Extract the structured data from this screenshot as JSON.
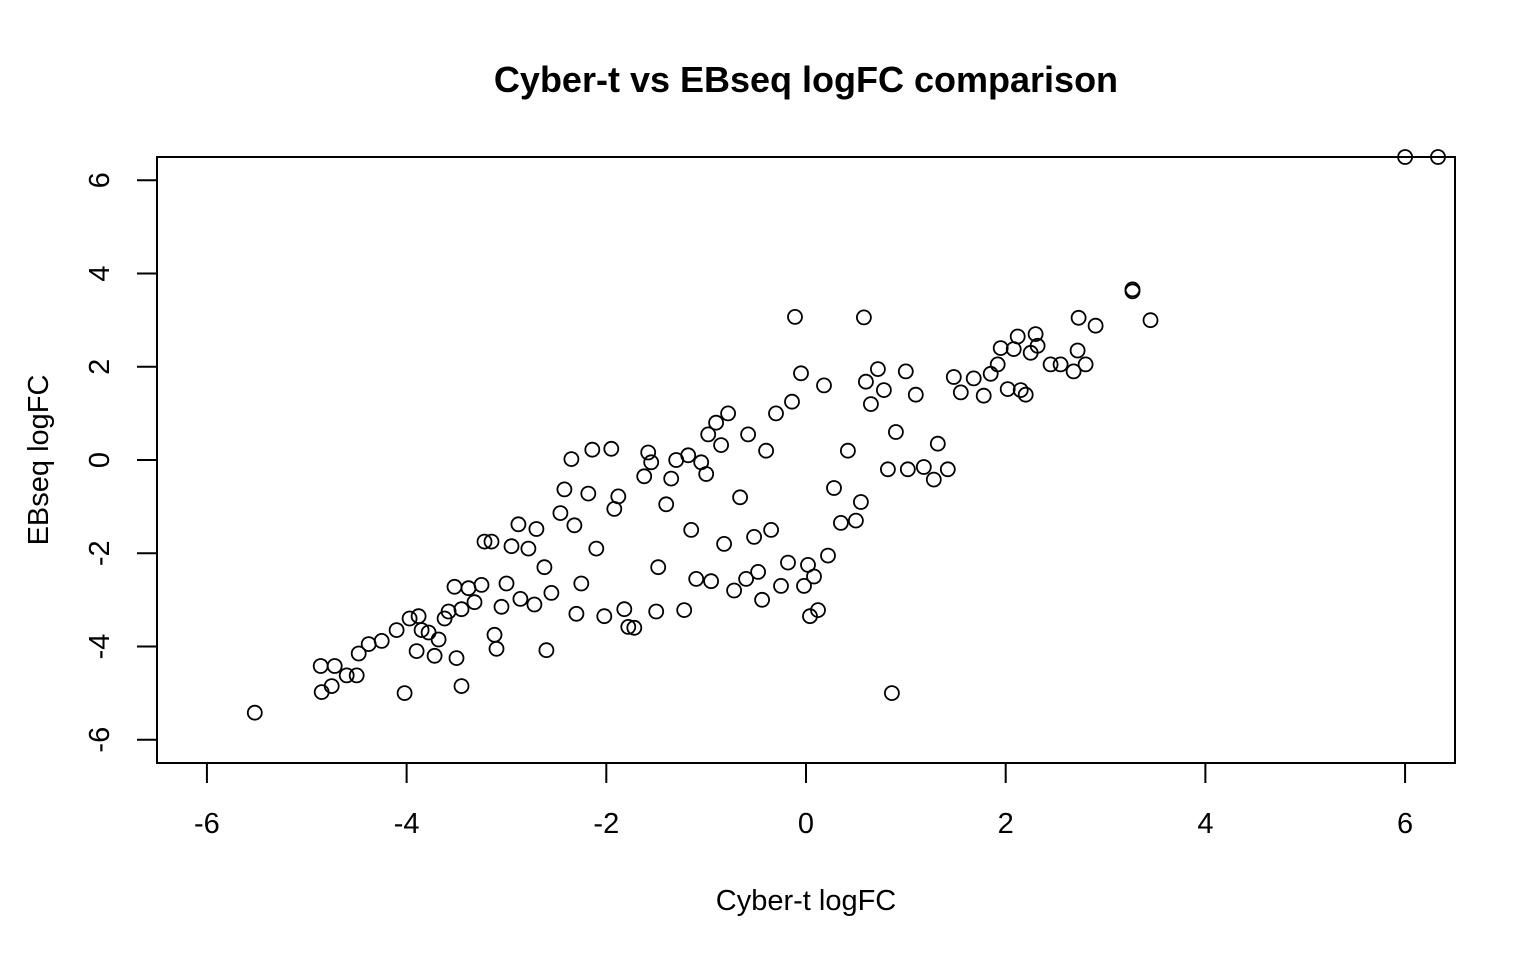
{
  "chart_data": {
    "type": "scatter",
    "title": "Cyber-t vs EBseq logFC comparison",
    "xlabel": "Cyber-t logFC",
    "ylabel": "EBseq logFC",
    "xlim": [
      -6.5,
      6.5
    ],
    "ylim": [
      -6.5,
      6.5
    ],
    "xticks": [
      -6,
      -4,
      -2,
      0,
      2,
      4,
      6
    ],
    "yticks": [
      -6,
      -4,
      -2,
      0,
      2,
      4,
      6
    ],
    "xtick_labels": [
      "-6",
      "-4",
      "-2",
      "0",
      "2",
      "4",
      "6"
    ],
    "ytick_labels": [
      "-6",
      "-4",
      "-2",
      "0",
      "2",
      "4",
      "6"
    ],
    "marker": "open-circle",
    "grid": false,
    "series": [
      {
        "points": [
          [
            -5.52,
            -5.42
          ],
          [
            -4.85,
            -4.98
          ],
          [
            -4.86,
            -4.42
          ],
          [
            -4.75,
            -4.85
          ],
          [
            -4.72,
            -4.42
          ],
          [
            -4.6,
            -4.62
          ],
          [
            -4.5,
            -4.62
          ],
          [
            -4.48,
            -4.15
          ],
          [
            -4.38,
            -3.95
          ],
          [
            -4.25,
            -3.88
          ],
          [
            -4.1,
            -3.65
          ],
          [
            -4.02,
            -5.0
          ],
          [
            -3.97,
            -3.4
          ],
          [
            -3.88,
            -3.35
          ],
          [
            -3.9,
            -4.1
          ],
          [
            -3.85,
            -3.65
          ],
          [
            -3.78,
            -3.7
          ],
          [
            -3.72,
            -4.2
          ],
          [
            -3.68,
            -3.85
          ],
          [
            -3.62,
            -3.4
          ],
          [
            -3.58,
            -3.25
          ],
          [
            -3.52,
            -2.72
          ],
          [
            -3.5,
            -4.25
          ],
          [
            -3.45,
            -3.2
          ],
          [
            -3.45,
            -4.85
          ],
          [
            -3.38,
            -2.75
          ],
          [
            -3.32,
            -3.05
          ],
          [
            -3.25,
            -2.68
          ],
          [
            -3.22,
            -1.75
          ],
          [
            -3.15,
            -1.75
          ],
          [
            -3.12,
            -3.75
          ],
          [
            -3.1,
            -4.05
          ],
          [
            -3.05,
            -3.15
          ],
          [
            -3.0,
            -2.65
          ],
          [
            -2.95,
            -1.85
          ],
          [
            -2.88,
            -1.38
          ],
          [
            -2.86,
            -2.98
          ],
          [
            -2.78,
            -1.9
          ],
          [
            -2.72,
            -3.1
          ],
          [
            -2.7,
            -1.48
          ],
          [
            -2.62,
            -2.3
          ],
          [
            -2.6,
            -4.08
          ],
          [
            -2.55,
            -2.85
          ],
          [
            -2.46,
            -1.14
          ],
          [
            -2.42,
            -0.63
          ],
          [
            -2.35,
            0.02
          ],
          [
            -2.32,
            -1.4
          ],
          [
            -2.3,
            -3.3
          ],
          [
            -2.25,
            -2.65
          ],
          [
            -2.18,
            -0.72
          ],
          [
            -2.14,
            0.22
          ],
          [
            -2.1,
            -1.9
          ],
          [
            -2.02,
            -3.35
          ],
          [
            -1.95,
            0.24
          ],
          [
            -1.92,
            -1.05
          ],
          [
            -1.88,
            -0.78
          ],
          [
            -1.82,
            -3.2
          ],
          [
            -1.78,
            -3.58
          ],
          [
            -1.72,
            -3.6
          ],
          [
            -1.62,
            -0.35
          ],
          [
            -1.58,
            0.16
          ],
          [
            -1.55,
            -0.05
          ],
          [
            -1.5,
            -3.25
          ],
          [
            -1.48,
            -2.3
          ],
          [
            -1.4,
            -0.95
          ],
          [
            -1.35,
            -0.4
          ],
          [
            -1.3,
            0.0
          ],
          [
            -1.22,
            -3.22
          ],
          [
            -1.18,
            0.1
          ],
          [
            -1.15,
            -1.5
          ],
          [
            -1.1,
            -2.55
          ],
          [
            -1.05,
            -0.05
          ],
          [
            -1.0,
            -0.3
          ],
          [
            -0.98,
            0.55
          ],
          [
            -0.95,
            -2.6
          ],
          [
            -0.9,
            0.8
          ],
          [
            -0.85,
            0.32
          ],
          [
            -0.82,
            -1.8
          ],
          [
            -0.78,
            1.0
          ],
          [
            -0.72,
            -2.8
          ],
          [
            -0.66,
            -0.8
          ],
          [
            -0.6,
            -2.55
          ],
          [
            -0.58,
            0.55
          ],
          [
            -0.52,
            -1.65
          ],
          [
            -0.48,
            -2.4
          ],
          [
            -0.44,
            -3.0
          ],
          [
            -0.4,
            0.2
          ],
          [
            -0.35,
            -1.5
          ],
          [
            -0.3,
            1.0
          ],
          [
            -0.25,
            -2.7
          ],
          [
            -0.18,
            -2.2
          ],
          [
            -0.14,
            1.25
          ],
          [
            -0.11,
            3.07
          ],
          [
            -0.05,
            1.86
          ],
          [
            -0.02,
            -2.7
          ],
          [
            0.02,
            -2.25
          ],
          [
            0.04,
            -3.35
          ],
          [
            0.08,
            -2.5
          ],
          [
            0.12,
            -3.22
          ],
          [
            0.18,
            1.6
          ],
          [
            0.22,
            -2.05
          ],
          [
            0.28,
            -0.6
          ],
          [
            0.35,
            -1.35
          ],
          [
            0.42,
            0.2
          ],
          [
            0.5,
            -1.3
          ],
          [
            0.55,
            -0.9
          ],
          [
            0.58,
            3.06
          ],
          [
            0.6,
            1.68
          ],
          [
            0.65,
            1.2
          ],
          [
            0.72,
            1.95
          ],
          [
            0.78,
            1.5
          ],
          [
            0.82,
            -0.2
          ],
          [
            0.86,
            -5.0
          ],
          [
            0.9,
            0.6
          ],
          [
            1.0,
            1.9
          ],
          [
            1.02,
            -0.2
          ],
          [
            1.1,
            1.4
          ],
          [
            1.18,
            -0.15
          ],
          [
            1.28,
            -0.42
          ],
          [
            1.32,
            0.35
          ],
          [
            1.42,
            -0.2
          ],
          [
            1.48,
            1.78
          ],
          [
            1.55,
            1.45
          ],
          [
            1.68,
            1.75
          ],
          [
            1.78,
            1.38
          ],
          [
            1.85,
            1.85
          ],
          [
            1.92,
            2.05
          ],
          [
            1.95,
            2.4
          ],
          [
            2.02,
            1.52
          ],
          [
            2.08,
            2.38
          ],
          [
            2.12,
            2.65
          ],
          [
            2.15,
            1.5
          ],
          [
            2.2,
            1.4
          ],
          [
            2.25,
            2.3
          ],
          [
            2.3,
            2.7
          ],
          [
            2.32,
            2.45
          ],
          [
            2.45,
            2.05
          ],
          [
            2.55,
            2.05
          ],
          [
            2.68,
            1.9
          ],
          [
            2.72,
            2.35
          ],
          [
            2.73,
            3.05
          ],
          [
            2.8,
            2.05
          ],
          [
            2.9,
            2.88
          ],
          [
            3.27,
            3.66
          ],
          [
            3.27,
            3.62
          ],
          [
            3.45,
            3.0
          ],
          [
            6.0,
            6.5
          ],
          [
            6.33,
            6.5
          ]
        ]
      }
    ]
  }
}
